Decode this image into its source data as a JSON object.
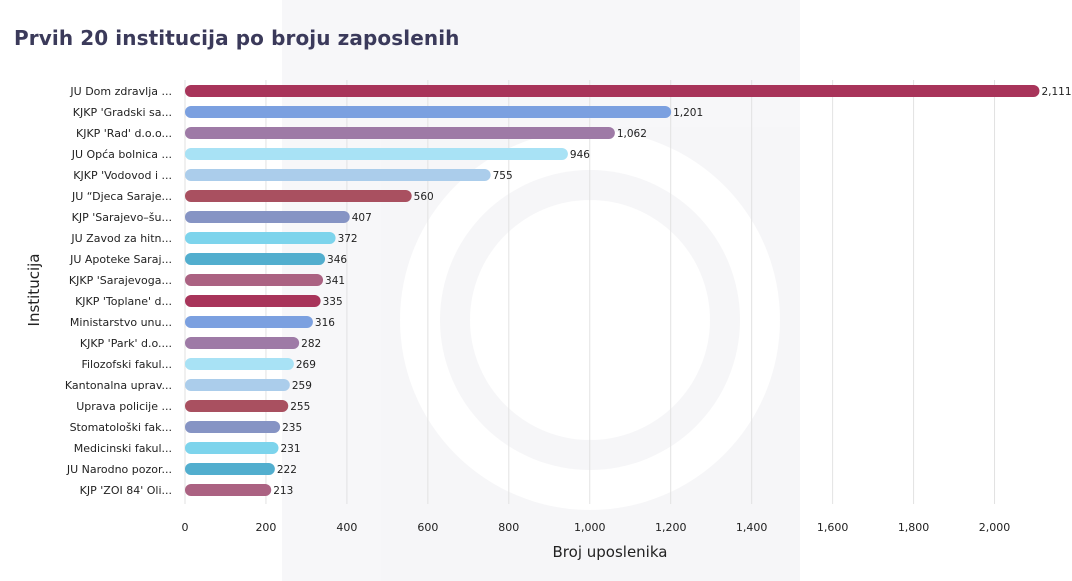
{
  "title": "Prvih 20 institucija po broju zaposlenih",
  "chart_data": {
    "type": "bar",
    "orientation": "horizontal",
    "title": "Prvih 20 institucija po broju zaposlenih",
    "xlabel": "Broj uposlenika",
    "ylabel": "Institucija",
    "xlim": [
      0,
      2100
    ],
    "xticks": [
      0,
      200,
      400,
      600,
      800,
      1000,
      1200,
      1400,
      1600,
      1800,
      2000
    ],
    "xtick_labels": [
      "0",
      "200",
      "400",
      "600",
      "800",
      "1,000",
      "1,200",
      "1,400",
      "1,600",
      "1,800",
      "2,000"
    ],
    "grid": true,
    "categories": [
      "JU Dom zdravlja ...",
      "KJKP 'Gradski sa...",
      "KJKP 'Rad' d.o.o...",
      "JU Opća bolnica ...",
      "KJKP 'Vodovod i ...",
      "JU “Djeca Saraje...",
      "KJP 'Sarajevo–šu...",
      "JU Zavod za hitn...",
      "JU Apoteke Saraj...",
      "KJKP 'Sarajevoga...",
      "KJKP 'Toplane' d...",
      "Ministarstvo unu...",
      "KJKP 'Park' d.o....",
      "Filozofski fakul...",
      "Kantonalna uprav...",
      "Uprava policije ...",
      "Stomatološki fak...",
      "Medicinski fakul...",
      "JU Narodno pozor...",
      "KJP 'ZOI 84' Oli..."
    ],
    "values": [
      2111,
      1201,
      1062,
      946,
      755,
      560,
      407,
      372,
      346,
      341,
      335,
      316,
      282,
      269,
      259,
      255,
      235,
      231,
      222,
      213
    ],
    "value_labels": [
      "2,111",
      "1,201",
      "1,062",
      "946",
      "755",
      "560",
      "407",
      "372",
      "346",
      "341",
      "335",
      "316",
      "282",
      "269",
      "259",
      "255",
      "235",
      "231",
      "222",
      "213"
    ],
    "colors": [
      "#a8345a",
      "#7ba0e0",
      "#9e7aa6",
      "#a8e2f5",
      "#abcdeb",
      "#a95060",
      "#8694c4",
      "#7dd4ec",
      "#52aece",
      "#ab6282",
      "#a8345a",
      "#7ba0e0",
      "#9e7aa6",
      "#a8e2f5",
      "#abcdeb",
      "#a95060",
      "#8694c4",
      "#7dd4ec",
      "#52aece",
      "#ab6282"
    ]
  }
}
